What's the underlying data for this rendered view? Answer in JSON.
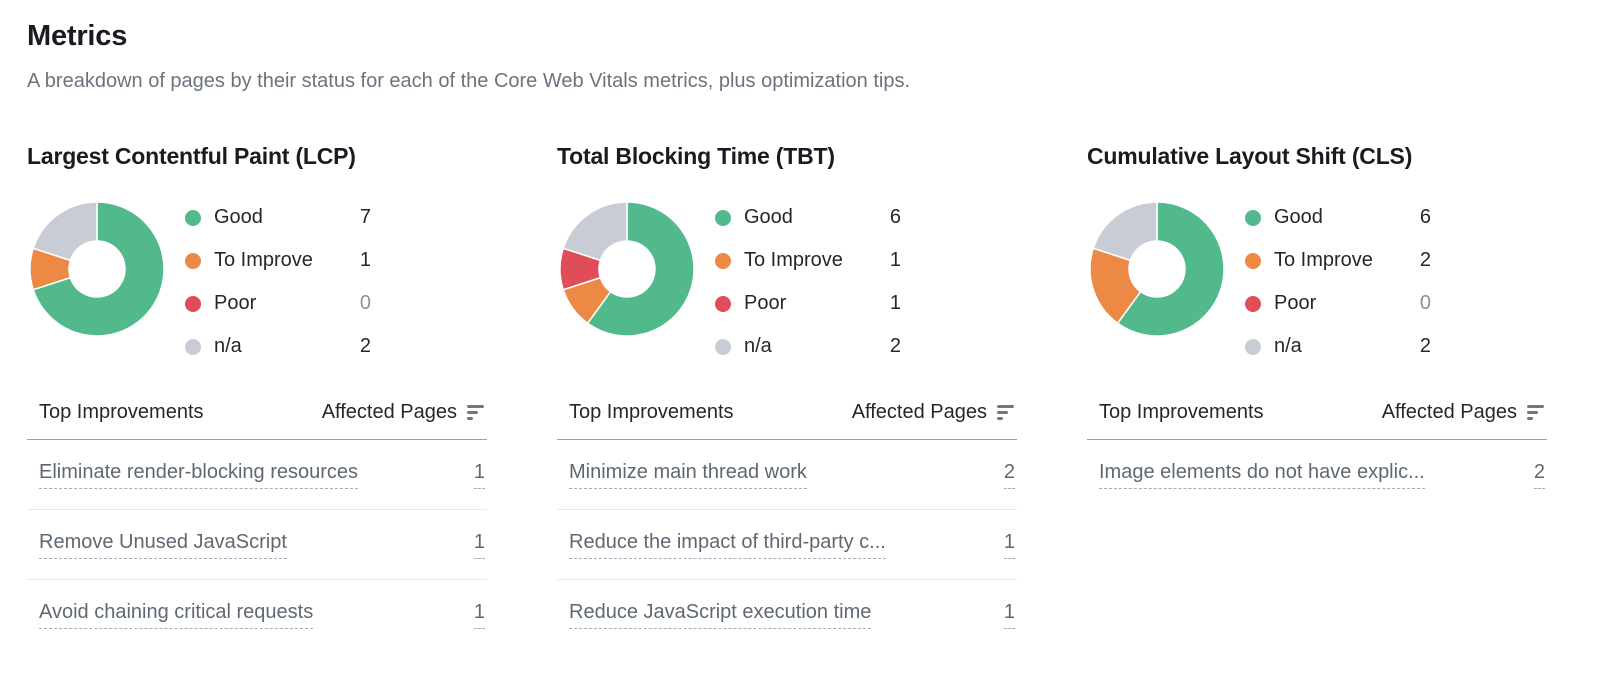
{
  "header": {
    "title": "Metrics",
    "subtitle": "A breakdown of pages by their status for each of the Core Web Vitals metrics, plus optimization tips."
  },
  "colors": {
    "good": "#52B98C",
    "to_improve": "#EC8A45",
    "poor": "#DF4D59",
    "na": "#C8CCD4",
    "zero_value": "#8C939C"
  },
  "legend": {
    "labels": [
      "Good",
      "To Improve",
      "Poor",
      "n/a"
    ]
  },
  "table_headers": {
    "improvements": "Top Improvements",
    "affected_pages": "Affected Pages"
  },
  "chart_data": [
    {
      "type": "pie",
      "title": "Largest Contentful Paint (LCP)",
      "categories": [
        "Good",
        "To Improve",
        "Poor",
        "n/a"
      ],
      "values": [
        7,
        1,
        0,
        2
      ],
      "legend_position": "right",
      "improvements": [
        {
          "label": "Eliminate render-blocking resources",
          "pages": 1
        },
        {
          "label": "Remove Unused JavaScript",
          "pages": 1
        },
        {
          "label": "Avoid chaining critical requests",
          "pages": 1
        }
      ]
    },
    {
      "type": "pie",
      "title": "Total Blocking Time (TBT)",
      "categories": [
        "Good",
        "To Improve",
        "Poor",
        "n/a"
      ],
      "values": [
        6,
        1,
        1,
        2
      ],
      "legend_position": "right",
      "improvements": [
        {
          "label": "Minimize main thread work",
          "pages": 2
        },
        {
          "label": "Reduce the impact of third-party c...",
          "pages": 1
        },
        {
          "label": "Reduce JavaScript execution time",
          "pages": 1
        }
      ]
    },
    {
      "type": "pie",
      "title": "Cumulative Layout Shift (CLS)",
      "categories": [
        "Good",
        "To Improve",
        "Poor",
        "n/a"
      ],
      "values": [
        6,
        2,
        0,
        2
      ],
      "legend_position": "right",
      "improvements": [
        {
          "label": "Image elements do not have explic...",
          "pages": 2
        }
      ]
    }
  ]
}
